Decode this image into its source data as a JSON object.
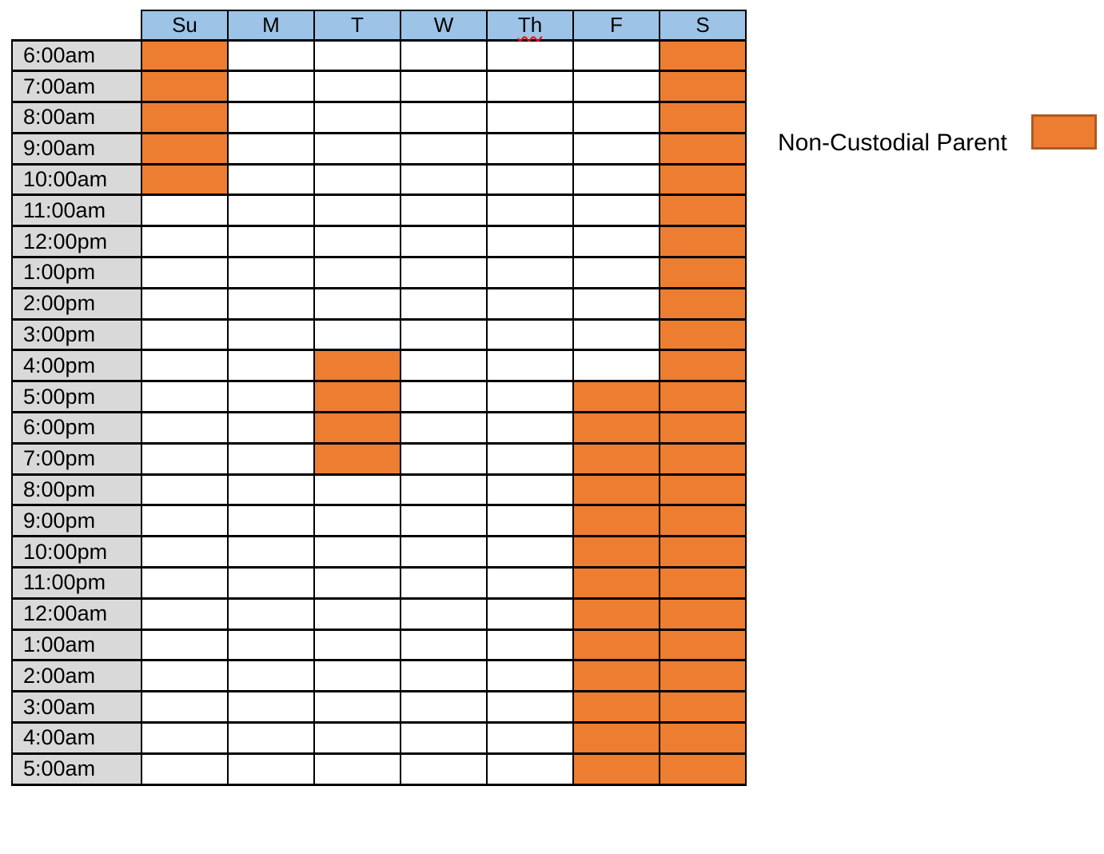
{
  "chart_data": {
    "type": "table",
    "columns": [
      "Su",
      "M",
      "T",
      "W",
      "Th",
      "F",
      "S"
    ],
    "rows": [
      "6:00am",
      "7:00am",
      "8:00am",
      "9:00am",
      "10:00am",
      "11:00am",
      "12:00pm",
      "1:00pm",
      "2:00pm",
      "3:00pm",
      "4:00pm",
      "5:00pm",
      "6:00pm",
      "7:00pm",
      "8:00pm",
      "9:00pm",
      "10:00pm",
      "11:00pm",
      "12:00am",
      "1:00am",
      "2:00am",
      "3:00am",
      "4:00am",
      "5:00am"
    ],
    "legend": {
      "label": "Non-Custodial Parent",
      "position": "right"
    },
    "highlighted": {
      "Su": [
        "6:00am",
        "7:00am",
        "8:00am",
        "9:00am",
        "10:00am"
      ],
      "M": [],
      "T": [
        "4:00pm",
        "5:00pm",
        "6:00pm",
        "7:00pm"
      ],
      "W": [],
      "Th": [],
      "F": [
        "5:00pm",
        "6:00pm",
        "7:00pm",
        "8:00pm",
        "9:00pm",
        "10:00pm",
        "11:00pm",
        "12:00am",
        "1:00am",
        "2:00am",
        "3:00am",
        "4:00am",
        "5:00am"
      ],
      "S": [
        "6:00am",
        "7:00am",
        "8:00am",
        "9:00am",
        "10:00am",
        "11:00am",
        "12:00pm",
        "1:00pm",
        "2:00pm",
        "3:00pm",
        "4:00pm",
        "5:00pm",
        "6:00pm",
        "7:00pm",
        "8:00pm",
        "9:00pm",
        "10:00pm",
        "11:00pm",
        "12:00am",
        "1:00am",
        "2:00am",
        "3:00am",
        "4:00am",
        "5:00am"
      ]
    }
  },
  "colors": {
    "highlight": "#ED7D31",
    "legend_swatch_border": "#AE5A21",
    "day_header_fill": "#9DC3E6",
    "time_column_fill": "#D9D9D9",
    "grid_line": "#000000",
    "spellcheck_underline": "#FF0000"
  },
  "annotations": {
    "spellcheck_underline_day": "Th"
  }
}
